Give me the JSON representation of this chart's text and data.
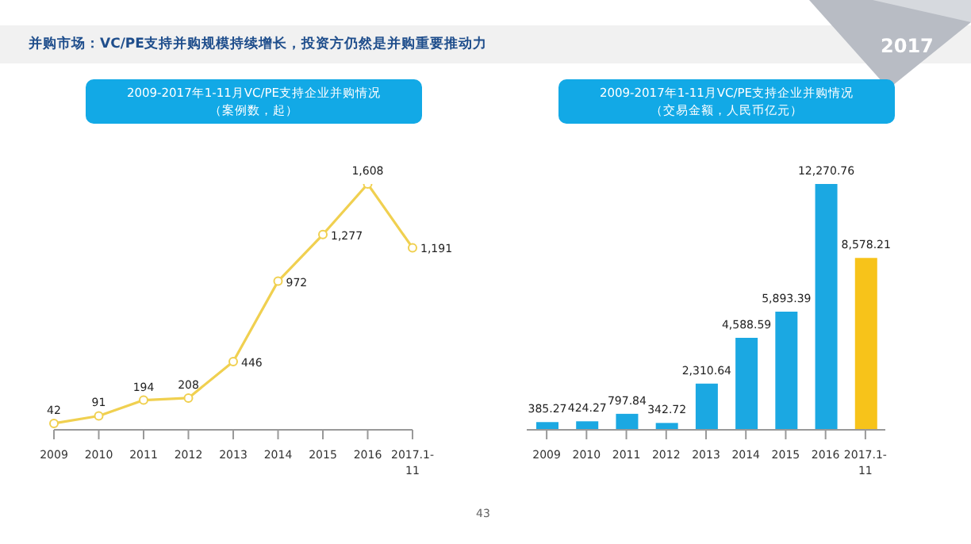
{
  "chart_data": [
    {
      "type": "line",
      "title": "2009-2017年1-11月VC/PE支持企业并购情况",
      "subtitle": "（案例数，起）",
      "annotations": [
        "并购市场：VC/PE支持并购规模持续增长，投资方仍然是并购重要推动力"
      ],
      "categories": [
        "2009",
        "2010",
        "2011",
        "2012",
        "2013",
        "2014",
        "2015",
        "2016",
        "2017.1-11"
      ],
      "series": [
        {
          "color": "#f0d050",
          "values": [
            42,
            91,
            194,
            208,
            446,
            972,
            1277,
            1608,
            1191
          ],
          "value_labels": [
            "42",
            "91",
            "194",
            "208",
            "446",
            "972",
            "1,277",
            "1,608",
            "1,191"
          ]
        }
      ],
      "marker": "circle"
    },
    {
      "type": "bar",
      "title": "2009-2017年1-11月VC/PE支持企业并购情况",
      "subtitle": "（交易金额，人民币亿元）",
      "annotations": [
        "2017",
        "43"
      ],
      "categories": [
        "2009",
        "2010",
        "2011",
        "2012",
        "2013",
        "2014",
        "2015",
        "2016",
        "2017.1-11"
      ],
      "values": [
        385.27,
        424.27,
        797.84,
        342.72,
        2310.64,
        4588.59,
        5893.39,
        12270.76,
        8578.21
      ],
      "value_labels": [
        "385.27",
        "424.27",
        "797.84",
        "342.72",
        "2,310.64",
        "4,588.59",
        "5,893.39",
        "12,270.76",
        "8,578.21"
      ],
      "colors": [
        "#1ba8e2",
        "#1ba8e2",
        "#1ba8e2",
        "#1ba8e2",
        "#1ba8e2",
        "#1ba8e2",
        "#1ba8e2",
        "#1ba8e2",
        "#f7c31a"
      ]
    }
  ]
}
